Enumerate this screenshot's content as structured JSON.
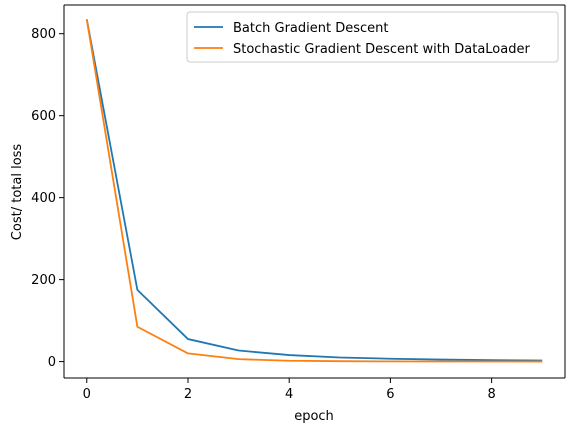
{
  "chart_data": {
    "type": "line",
    "title": "",
    "xlabel": "epoch",
    "ylabel": "Cost/ total loss",
    "xlim": [
      -0.45,
      9.45
    ],
    "ylim": [
      -40,
      870
    ],
    "xticks": [
      0,
      2,
      4,
      6,
      8
    ],
    "yticks": [
      0,
      200,
      400,
      600,
      800
    ],
    "grid": false,
    "legend_position": "upper-right",
    "x": [
      0,
      1,
      2,
      3,
      4,
      5,
      6,
      7,
      8,
      9
    ],
    "series": [
      {
        "name": "Batch Gradient Descent",
        "color": "#1f77b4",
        "values": [
          835,
          175,
          55,
          27,
          16,
          10,
          7,
          5,
          3.5,
          2.5
        ]
      },
      {
        "name": "Stochastic Gradient Descent with DataLoader",
        "color": "#ff7f0e",
        "values": [
          835,
          85,
          20,
          6,
          2,
          1,
          0.5,
          0.3,
          0.2,
          0.1
        ]
      }
    ]
  }
}
